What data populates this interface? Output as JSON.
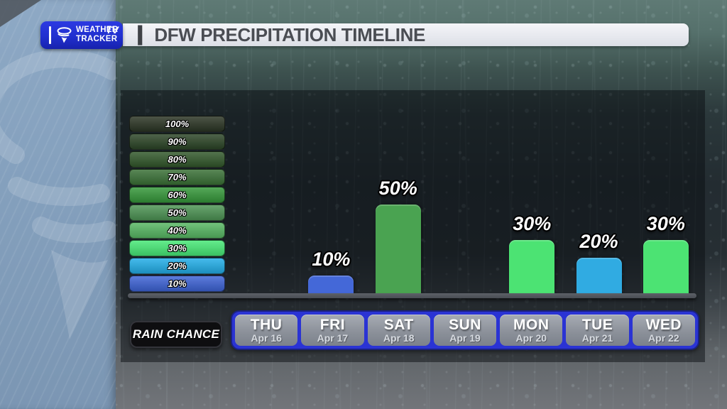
{
  "logo": {
    "brand_line1": "WEATHER",
    "brand_line2": "TRACKER",
    "badge": "TV"
  },
  "header": {
    "divider": "|",
    "title": "DFW PRECIPITATION TIMELINE"
  },
  "legend": {
    "title": "RAIN CHANCE",
    "items": [
      {
        "label": "100%",
        "color": "#2b3524"
      },
      {
        "label": "90%",
        "color": "#2c4527"
      },
      {
        "label": "80%",
        "color": "#32582b"
      },
      {
        "label": "70%",
        "color": "#3a7136"
      },
      {
        "label": "60%",
        "color": "#35983a"
      },
      {
        "label": "50%",
        "color": "#4d9454"
      },
      {
        "label": "40%",
        "color": "#57b863"
      },
      {
        "label": "30%",
        "color": "#47ea77"
      },
      {
        "label": "20%",
        "color": "#22aee8"
      },
      {
        "label": "10%",
        "color": "#3d63d6"
      }
    ]
  },
  "chart_data": {
    "type": "bar",
    "title": "DFW PRECIPITATION TIMELINE",
    "ylabel": "Rain chance (%)",
    "ylim": [
      0,
      100
    ],
    "grid": false,
    "legend_position": "left",
    "categories": [
      "THU Apr 16",
      "FRI Apr 17",
      "SAT Apr 18",
      "SUN Apr 19",
      "MON Apr 20",
      "TUE Apr 21",
      "WED Apr 22"
    ],
    "values": [
      0,
      10,
      50,
      0,
      30,
      20,
      30
    ],
    "days": [
      {
        "day": "THU",
        "date": "Apr 16",
        "value": 0,
        "label": "",
        "color": null
      },
      {
        "day": "FRI",
        "date": "Apr 17",
        "value": 10,
        "label": "10%",
        "color": "#4468d8"
      },
      {
        "day": "SAT",
        "date": "Apr 18",
        "value": 50,
        "label": "50%",
        "color": "#4aa351"
      },
      {
        "day": "SUN",
        "date": "Apr 19",
        "value": 0,
        "label": "",
        "color": null
      },
      {
        "day": "MON",
        "date": "Apr 20",
        "value": 30,
        "label": "30%",
        "color": "#4ce373"
      },
      {
        "day": "TUE",
        "date": "Apr 21",
        "value": 20,
        "label": "20%",
        "color": "#30abe2"
      },
      {
        "day": "WED",
        "date": "Apr 22",
        "value": 30,
        "label": "30%",
        "color": "#4ce373"
      }
    ]
  },
  "colors": {
    "day_strip_blue": "#2a33d4",
    "day_box_gray": "#8c919a",
    "panel_overlay": "rgba(10,14,17,0.50)",
    "logo_blue": "#2130cf",
    "title_bar": "#e6e8ee",
    "side_band_blue": "#84a0bd"
  }
}
